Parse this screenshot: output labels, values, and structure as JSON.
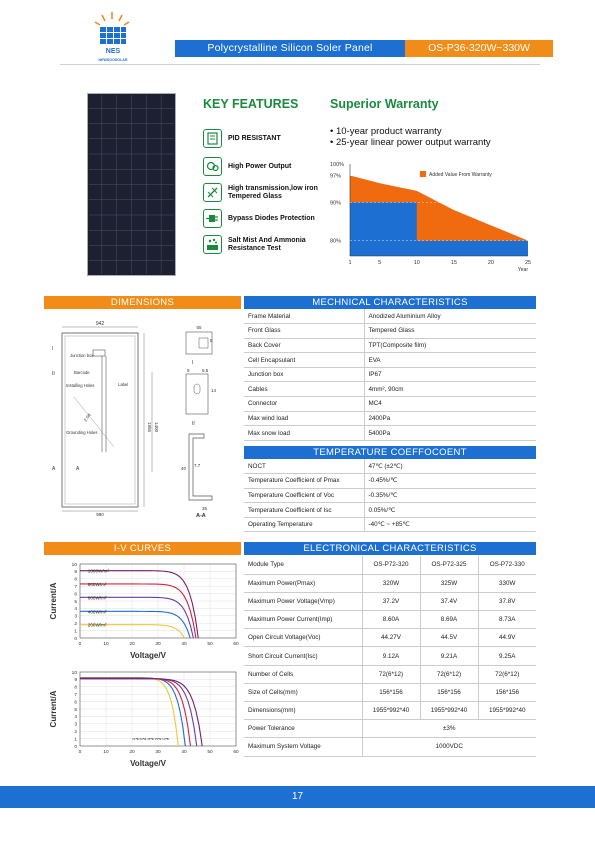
{
  "header": {
    "brand": "NEWSOOSOLAR",
    "logo_text": "NES",
    "title": "Polycrystalline Silicon Soler Panel",
    "model": "OS-P36-320W~330W"
  },
  "key_features": {
    "title": "KEY FEATURES",
    "items": [
      {
        "label": "PID RESISTANT",
        "icon": "pid-icon"
      },
      {
        "label": "High Power Output",
        "icon": "power-icon"
      },
      {
        "label": "High transmission,low iron Tempered Glass",
        "icon": "glass-icon"
      },
      {
        "label": "Bypass Diodes Protection",
        "icon": "diode-icon"
      },
      {
        "label": "Salt Mist And Ammonia Resistance Test",
        "icon": "salt-mist-icon"
      }
    ]
  },
  "warranty": {
    "title": "Superior Warranty",
    "bullets": [
      "10-year product warranty",
      "25-year linear power output warranty"
    ],
    "legend": "Added Value From Warranty",
    "y_labels": [
      "100%",
      "97%",
      "90%",
      "80%"
    ],
    "x_labels": [
      "1",
      "5",
      "10",
      "15",
      "20",
      "25"
    ],
    "x_unit": "Year",
    "colors": {
      "added": "#f06a10",
      "base": "#1d6fd1"
    }
  },
  "sections": {
    "dimensions": "DIMENSIONS",
    "mechanical": "MECHNICAL CHARACTERISTICS",
    "temperature": "TEMPERATURE COEFFOCOENT",
    "iv": "I-V CURVES",
    "electrical": "ELECTRONICAL CHARACTERISTICS"
  },
  "dimensions": {
    "width": "942",
    "height_main": "1956",
    "diag": "2.04",
    "junction_box": "Junction box",
    "barcode": "Barcode",
    "label": "Label",
    "installing_holes": "Installing Holes",
    "grounding_holes": "Grounding Holes",
    "section_aa": "A-A",
    "marks": {
      "i": "I",
      "ii": "II",
      "a": "A"
    },
    "detail": [
      "55",
      "8",
      "9",
      "5.5",
      "14",
      "40",
      "35",
      "7.7",
      "16",
      "35",
      "1400",
      "1955",
      "990"
    ]
  },
  "mechanical": {
    "rows": [
      [
        "Frame Material",
        "Anodized Aluminium Alloy"
      ],
      [
        "Front Glass",
        "Tempered Glass"
      ],
      [
        "Back Cover",
        "TPT(Composite film)"
      ],
      [
        "Cell Encapsulant",
        "EVA"
      ],
      [
        "Junction box",
        "IP67"
      ],
      [
        "Cables",
        "4mm², 90cm"
      ],
      [
        "Connector",
        "MC4"
      ],
      [
        "Max wind load",
        "2400Pa"
      ],
      [
        "Max snow load",
        "5400Pa"
      ]
    ]
  },
  "temperature": {
    "rows": [
      [
        "NOCT",
        "47℃ (±2℃)"
      ],
      [
        "Temperature Coefficient of Pmax",
        "-0.45%/℃"
      ],
      [
        "Temperature Coefficient of Voc",
        "-0.35%/℃"
      ],
      [
        "Temperature Coefficient of Isc",
        "0.05%/℃"
      ],
      [
        "Operating Temperature",
        "-40℃ ~ +85℃"
      ]
    ]
  },
  "electrical": {
    "header": [
      "Module Type",
      "OS-P72-320",
      "OS-P72-325",
      "OS-P72-330"
    ],
    "rows": [
      [
        "Maximum Power(Pmax)",
        "320W",
        "325W",
        "330W"
      ],
      [
        "Maximum Power Voltage(Vmp)",
        "37.2V",
        "37.4V",
        "37.8V"
      ],
      [
        "Maximum Power Current(Imp)",
        "8.60A",
        "8.69A",
        "8.73A"
      ],
      [
        "Open Circuit Voltage(Voc)",
        "44.27V",
        "44.5V",
        "44.9V"
      ],
      [
        "Short Circuit Current(Isc)",
        "9.12A",
        "9.21A",
        "9.25A"
      ],
      [
        "Number of Cells",
        "72(6*12)",
        "72(6*12)",
        "72(6*12)"
      ],
      [
        "Size of Cells(mm)",
        "156*156",
        "156*156",
        "156*156"
      ],
      [
        "Dimensions(mm)",
        "1955*992*40",
        "1955*992*40",
        "1955*992*40"
      ]
    ],
    "span_rows": [
      [
        "Power Tolerance",
        "±3%"
      ],
      [
        "Maximum System Voltage",
        "1000VDC"
      ]
    ]
  },
  "chart_data": [
    {
      "type": "area",
      "title": "",
      "xlabel": "Year",
      "ylabel": "",
      "x": [
        1,
        5,
        10,
        15,
        20,
        25
      ],
      "series": [
        {
          "name": "Added Value From Warranty",
          "values": [
            97,
            95,
            93,
            88,
            84,
            80
          ]
        }
      ],
      "step_series": [
        [
          1,
          90
        ],
        [
          10,
          90
        ],
        [
          10,
          80
        ],
        [
          25,
          80
        ]
      ],
      "xlim": [
        1,
        25
      ],
      "ylim": [
        76,
        100
      ]
    },
    {
      "type": "line",
      "xlabel": "Voltage/V",
      "ylabel": "Current/A",
      "xlim": [
        0,
        60
      ],
      "ylim": [
        0,
        10
      ],
      "x_ticks": [
        0,
        10,
        20,
        30,
        40,
        50,
        60
      ],
      "y_ticks": [
        0,
        1,
        2,
        3,
        4,
        5,
        6,
        7,
        8,
        9,
        10
      ],
      "series": [
        {
          "name": "1000W/m²",
          "isc": 9.1,
          "voc": 45.5,
          "color": "#7a1f6a"
        },
        {
          "name": "800W/m²",
          "isc": 7.3,
          "voc": 44.6,
          "color": "#d2233c"
        },
        {
          "name": "600W/m²",
          "isc": 5.5,
          "voc": 43.6,
          "color": "#6a3ea1"
        },
        {
          "name": "400W/m²",
          "isc": 3.6,
          "voc": 42.4,
          "color": "#1d6fd1"
        },
        {
          "name": "200W/m²",
          "isc": 1.8,
          "voc": 40.2,
          "color": "#e9c83a"
        }
      ]
    },
    {
      "type": "line",
      "xlabel": "Voltage/V",
      "ylabel": "Current/A",
      "xlim": [
        0,
        60
      ],
      "ylim": [
        0,
        10
      ],
      "x_ticks": [
        0,
        10,
        20,
        30,
        40,
        50,
        60
      ],
      "y_ticks": [
        0,
        1,
        2,
        3,
        4,
        5,
        6,
        7,
        8,
        9,
        10
      ],
      "annotation": "74℃ 60℃ 45℃ 25℃ 10℃",
      "series": [
        {
          "name": "74℃",
          "isc": 9.25,
          "voc": 37.8,
          "color": "#e9c83a"
        },
        {
          "name": "60℃",
          "isc": 9.2,
          "voc": 40.5,
          "color": "#1d6fd1"
        },
        {
          "name": "45℃",
          "isc": 9.15,
          "voc": 42.5,
          "color": "#d2233c"
        },
        {
          "name": "25℃",
          "isc": 9.12,
          "voc": 44.9,
          "color": "#6a3ea1"
        },
        {
          "name": "10℃",
          "isc": 9.08,
          "voc": 47.0,
          "color": "#7a1f6a"
        }
      ]
    }
  ],
  "footer": {
    "page": "17"
  }
}
